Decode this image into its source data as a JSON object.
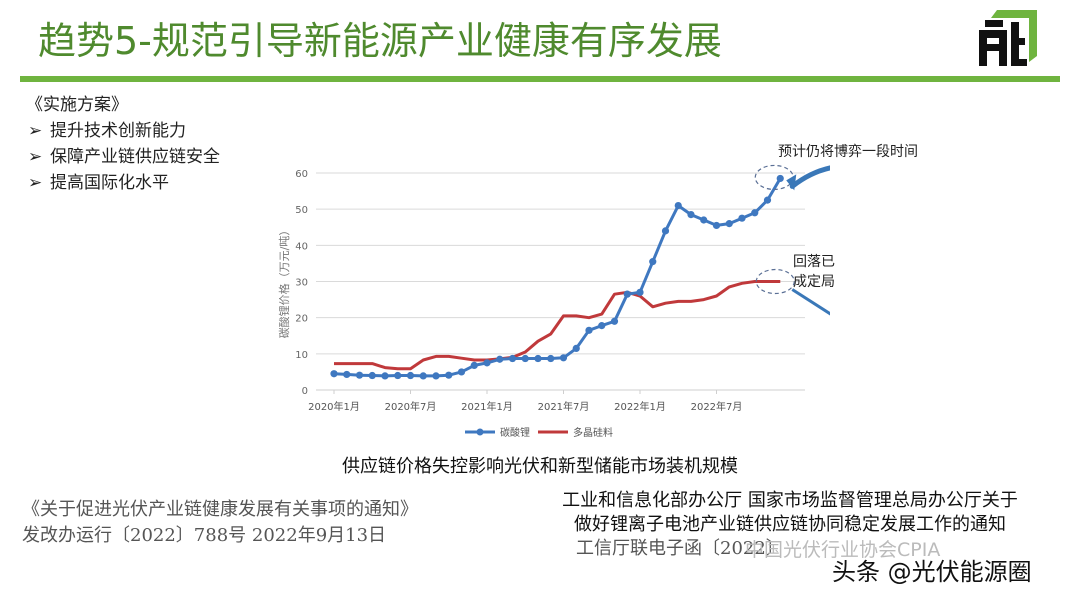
{
  "header": {
    "title": "趋势5-规范引导新能源产业健康有序发展",
    "logo": "fnt-logo-icon",
    "accent_color": "#6fb43f",
    "title_color": "#4f8a2e"
  },
  "plan": {
    "heading": "《实施方案》",
    "bullet_icon": "arrow-bullet-icon",
    "items": [
      {
        "label": "提升技术创新能力"
      },
      {
        "label": "保障产业链供应链安全"
      },
      {
        "label": "提高国际化水平"
      }
    ]
  },
  "annotations": {
    "top": "预计仍将博弈一段时间",
    "bottom_line1": "回落已",
    "bottom_line2": "成定局"
  },
  "caption": "供应链价格失控影响光伏和新型储能市场装机规模",
  "left_doc": {
    "line1": "《关于促进光伏产业链健康发展有关事项的通知》",
    "line2": "发改办运行〔2022〕788号 2022年9月13日"
  },
  "right_doc": {
    "line1": "工业和信息化部办公厅 国家市场监督管理总局办公厅关于",
    "line2": "做好锂离子电池产业链供应链协同稳定发展工作的通知",
    "line3": "工信厅联电子函〔2022〕"
  },
  "watermarks": {
    "faint": "中国光伏行业协会CPIA",
    "main": "头条 @光伏能源圈"
  },
  "chart_data": {
    "type": "line",
    "title": "",
    "xlabel": "",
    "ylabel": "碳酸锂价格（万元/吨）",
    "ylim": [
      0,
      60
    ],
    "yticks": [
      0,
      10,
      20,
      30,
      40,
      50,
      60
    ],
    "xtick_labels": [
      "2020年1月",
      "2020年7月",
      "2021年1月",
      "2021年7月",
      "2022年1月",
      "2022年7月"
    ],
    "grid": true,
    "legend_position": "bottom",
    "x": [
      "2020-01",
      "2020-02",
      "2020-03",
      "2020-04",
      "2020-05",
      "2020-06",
      "2020-07",
      "2020-08",
      "2020-09",
      "2020-10",
      "2020-11",
      "2020-12",
      "2021-01",
      "2021-02",
      "2021-03",
      "2021-04",
      "2021-05",
      "2021-06",
      "2021-07",
      "2021-08",
      "2021-09",
      "2021-10",
      "2021-11",
      "2021-12",
      "2022-01",
      "2022-02",
      "2022-03",
      "2022-04",
      "2022-05",
      "2022-06",
      "2022-07",
      "2022-08",
      "2022-09",
      "2022-10",
      "2022-11",
      "2022-12"
    ],
    "series": [
      {
        "name": "碳酸锂",
        "color": "#3f78c0",
        "marker": "circle",
        "values": [
          4.5,
          4.3,
          4.1,
          4.0,
          3.9,
          4.0,
          4.0,
          3.9,
          3.9,
          4.1,
          5.0,
          6.8,
          7.5,
          8.5,
          8.7,
          8.7,
          8.7,
          8.7,
          8.9,
          11.5,
          16.5,
          17.8,
          19.0,
          26.5,
          27.0,
          35.5,
          44.0,
          51.0,
          48.5,
          47.0,
          45.5,
          46.0,
          47.5,
          49.0,
          52.5,
          58.5
        ]
      },
      {
        "name": "多晶硅料",
        "color": "#c0393b",
        "marker": "none",
        "values": [
          7.3,
          7.3,
          7.3,
          7.3,
          6.2,
          5.9,
          5.9,
          8.3,
          9.3,
          9.3,
          8.8,
          8.3,
          8.3,
          8.6,
          9.0,
          10.5,
          13.5,
          15.5,
          20.5,
          20.5,
          20.0,
          21.0,
          26.5,
          27.0,
          26.0,
          23.0,
          24.0,
          24.5,
          24.5,
          25.0,
          26.0,
          28.5,
          29.5,
          30.0,
          30.0,
          30.0
        ]
      }
    ]
  }
}
